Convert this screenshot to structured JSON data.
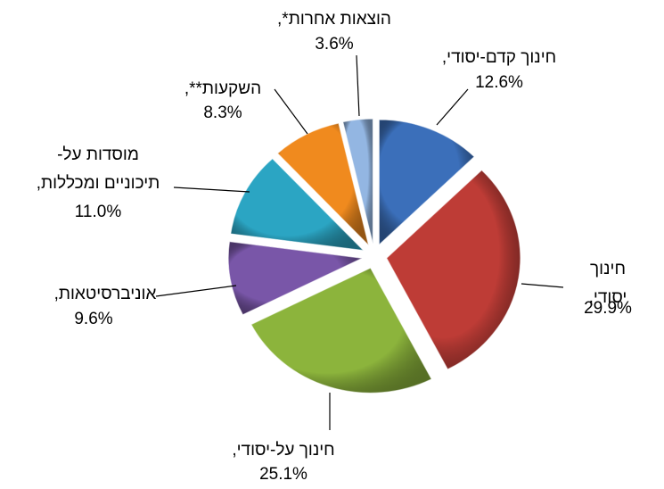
{
  "chart_data": {
    "type": "pie",
    "categories": [
      "חינוך קדם-יסודי,",
      "חינוך יסודי,",
      "חינוך על-יסודי,",
      "אוניברסיטאות,",
      "מוסדות על-\nתיכוניים ומכללות,",
      "השקעות**,",
      "הוצאות אחרות*,"
    ],
    "values": [
      12.6,
      29.9,
      25.1,
      9.6,
      11.0,
      8.3,
      3.6
    ],
    "value_labels": [
      "12.6%",
      "29.9%",
      "25.1%",
      "9.6%",
      "11.0%",
      "8.3%",
      "3.6%"
    ],
    "colors": [
      "#3b6fba",
      "#be3c36",
      "#8cb43c",
      "#7956a8",
      "#2ba5c3",
      "#f08a1e",
      "#93b6e2"
    ]
  }
}
